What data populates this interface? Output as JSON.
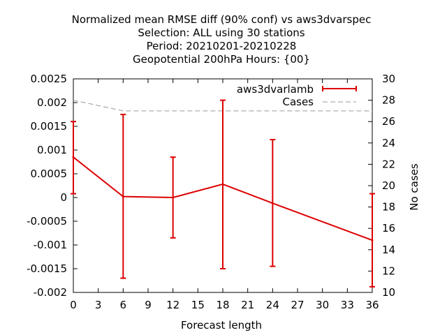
{
  "chart_data": {
    "type": "line",
    "title_lines": [
      "Normalized mean RMSE diff (90% conf) vs aws3dvarspec",
      "Selection: ALL using    30 stations",
      "Period: 20210201-20210228",
      "Geopotential 200hPa   Hours: {00}"
    ],
    "xlabel": "Forecast length",
    "ylabel": "",
    "y2label": "No cases",
    "xlim": [
      0,
      36
    ],
    "ylim": [
      -0.002,
      0.0025
    ],
    "y2lim": [
      10,
      30
    ],
    "x_ticks": [
      0,
      3,
      6,
      9,
      12,
      15,
      18,
      21,
      24,
      27,
      30,
      33,
      36
    ],
    "y_ticks": [
      "-0.002",
      "-0.0015",
      "-0.001",
      "-0.0005",
      "0",
      "0.0005",
      "0.001",
      "0.0015",
      "0.002",
      "0.0025"
    ],
    "y2_ticks": [
      10,
      12,
      14,
      16,
      18,
      20,
      22,
      24,
      26,
      28,
      30
    ],
    "legend_position": "top-right",
    "grid": false,
    "series": [
      {
        "name": "aws3dvarlamb",
        "color": "#dd0000",
        "x": [
          0,
          6,
          12,
          18,
          24,
          36
        ],
        "y": [
          0.00085,
          2e-05,
          0.0,
          0.00028,
          -0.00012,
          -0.0009
        ],
        "err_low": [
          8e-05,
          -0.0017,
          -0.00085,
          -0.0015,
          -0.00145,
          -0.00188
        ],
        "err_high": [
          0.0016,
          0.00175,
          0.00085,
          0.00205,
          0.00122,
          8e-05
        ]
      },
      {
        "name": "Cases",
        "color": "#999999",
        "axis": "y2",
        "x": [
          0,
          6,
          12,
          18,
          24,
          36
        ],
        "y": [
          28,
          27,
          27,
          27,
          27,
          27
        ]
      }
    ]
  }
}
